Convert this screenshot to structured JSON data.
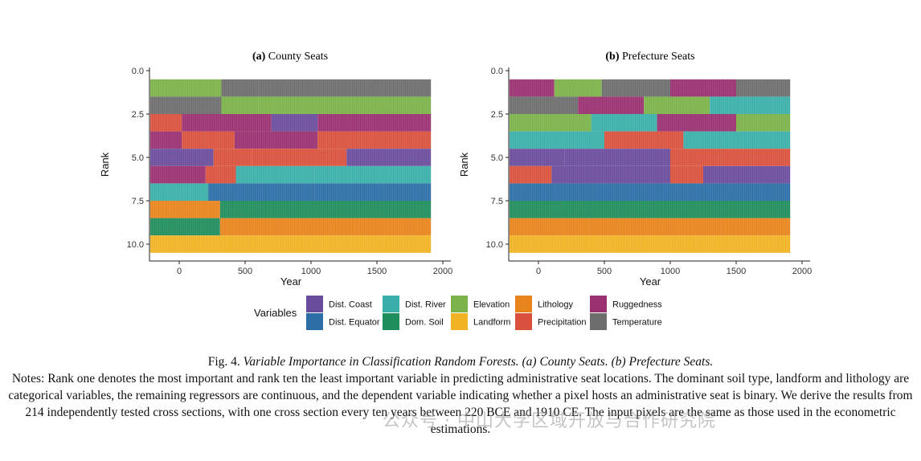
{
  "colors": {
    "Dist. Coast": "#6a4c9c",
    "Dist. Equator": "#2b6ea6",
    "Elevation": "#7bb249",
    "Lithology": "#e8841c",
    "Ruggedness": "#9a3070",
    "Dist. River": "#3aafa9",
    "Dom. Soil": "#1f8d5c",
    "Landform": "#f1b323",
    "Precipitation": "#d9513c",
    "Temperature": "#6d6d6d"
  },
  "legend": {
    "title": "Variables",
    "items": [
      "Dist. Coast",
      "Dist. Equator",
      "Dist. River",
      "Dom. Soil",
      "Elevation",
      "Landform",
      "Lithology",
      "Precipitation",
      "Ruggedness",
      "Temperature"
    ]
  },
  "chart_data": [
    {
      "type": "heatmap",
      "title_bold": "(a)",
      "title": "County Seats",
      "xlabel": "Year",
      "ylabel": "Rank",
      "xlim": [
        -220,
        1910
      ],
      "xticks": [
        0,
        500,
        1000,
        1500,
        2000
      ],
      "ylim": [
        0.5,
        10.5
      ],
      "yticks": [
        0.0,
        2.5,
        5.0,
        7.5,
        10.0
      ],
      "rows": [
        {
          "rank": 1,
          "segments": [
            {
              "from": -220,
              "to": 320,
              "variable": "Elevation"
            },
            {
              "from": 320,
              "to": 600,
              "variable": "Temperature"
            },
            {
              "from": 600,
              "to": 1910,
              "variable": "Temperature"
            }
          ]
        },
        {
          "rank": 2,
          "segments": [
            {
              "from": -220,
              "to": 320,
              "variable": "Temperature"
            },
            {
              "from": 320,
              "to": 600,
              "variable": "Elevation"
            },
            {
              "from": 600,
              "to": 1910,
              "variable": "Elevation"
            }
          ]
        },
        {
          "rank": 3,
          "segments": [
            {
              "from": -220,
              "to": 20,
              "variable": "Precipitation"
            },
            {
              "from": 20,
              "to": 700,
              "variable": "Ruggedness"
            },
            {
              "from": 700,
              "to": 1050,
              "variable": "Dist. Coast"
            },
            {
              "from": 1050,
              "to": 1910,
              "variable": "Ruggedness"
            }
          ]
        },
        {
          "rank": 4,
          "segments": [
            {
              "from": -220,
              "to": 20,
              "variable": "Ruggedness"
            },
            {
              "from": 20,
              "to": 420,
              "variable": "Precipitation"
            },
            {
              "from": 420,
              "to": 1050,
              "variable": "Ruggedness"
            },
            {
              "from": 1050,
              "to": 1910,
              "variable": "Precipitation"
            }
          ]
        },
        {
          "rank": 5,
          "segments": [
            {
              "from": -220,
              "to": 260,
              "variable": "Dist. Coast"
            },
            {
              "from": 260,
              "to": 550,
              "variable": "Precipitation"
            },
            {
              "from": 550,
              "to": 1270,
              "variable": "Precipitation"
            },
            {
              "from": 1270,
              "to": 1910,
              "variable": "Dist. Coast"
            }
          ]
        },
        {
          "rank": 6,
          "segments": [
            {
              "from": -220,
              "to": 200,
              "variable": "Ruggedness"
            },
            {
              "from": 200,
              "to": 430,
              "variable": "Precipitation"
            },
            {
              "from": 430,
              "to": 1030,
              "variable": "Dist. River"
            },
            {
              "from": 1030,
              "to": 1910,
              "variable": "Dist. River"
            }
          ]
        },
        {
          "rank": 7,
          "segments": [
            {
              "from": -220,
              "to": 220,
              "variable": "Dist. River"
            },
            {
              "from": 220,
              "to": 1030,
              "variable": "Dist. Equator"
            },
            {
              "from": 1030,
              "to": 1910,
              "variable": "Dist. Equator"
            }
          ]
        },
        {
          "rank": 8,
          "segments": [
            {
              "from": -220,
              "to": 310,
              "variable": "Lithology"
            },
            {
              "from": 310,
              "to": 1910,
              "variable": "Dom. Soil"
            }
          ]
        },
        {
          "rank": 9,
          "segments": [
            {
              "from": -220,
              "to": 310,
              "variable": "Dom. Soil"
            },
            {
              "from": 310,
              "to": 1910,
              "variable": "Lithology"
            }
          ]
        },
        {
          "rank": 10,
          "segments": [
            {
              "from": -220,
              "to": 1910,
              "variable": "Landform"
            }
          ]
        }
      ]
    },
    {
      "type": "heatmap",
      "title_bold": "(b)",
      "title": "Prefecture Seats",
      "xlabel": "Year",
      "ylabel": "Rank",
      "xlim": [
        -220,
        1910
      ],
      "xticks": [
        0,
        500,
        1000,
        1500,
        2000
      ],
      "ylim": [
        0.5,
        10.5
      ],
      "yticks": [
        0.0,
        2.5,
        5.0,
        7.5,
        10.0
      ],
      "rows": [
        {
          "rank": 1,
          "segments": [
            {
              "from": -220,
              "to": 120,
              "variable": "Ruggedness"
            },
            {
              "from": 120,
              "to": 480,
              "variable": "Elevation"
            },
            {
              "from": 480,
              "to": 1000,
              "variable": "Temperature"
            },
            {
              "from": 1000,
              "to": 1500,
              "variable": "Ruggedness"
            },
            {
              "from": 1500,
              "to": 1910,
              "variable": "Temperature"
            }
          ]
        },
        {
          "rank": 2,
          "segments": [
            {
              "from": -220,
              "to": 300,
              "variable": "Temperature"
            },
            {
              "from": 300,
              "to": 800,
              "variable": "Ruggedness"
            },
            {
              "from": 800,
              "to": 1300,
              "variable": "Elevation"
            },
            {
              "from": 1300,
              "to": 1910,
              "variable": "Dist. River"
            }
          ]
        },
        {
          "rank": 3,
          "segments": [
            {
              "from": -220,
              "to": 400,
              "variable": "Elevation"
            },
            {
              "from": 400,
              "to": 900,
              "variable": "Dist. River"
            },
            {
              "from": 900,
              "to": 1500,
              "variable": "Ruggedness"
            },
            {
              "from": 1500,
              "to": 1910,
              "variable": "Elevation"
            }
          ]
        },
        {
          "rank": 4,
          "segments": [
            {
              "from": -220,
              "to": 500,
              "variable": "Dist. River"
            },
            {
              "from": 500,
              "to": 1100,
              "variable": "Precipitation"
            },
            {
              "from": 1100,
              "to": 1910,
              "variable": "Dist. River"
            }
          ]
        },
        {
          "rank": 5,
          "segments": [
            {
              "from": -220,
              "to": 200,
              "variable": "Dist. Coast"
            },
            {
              "from": 200,
              "to": 1000,
              "variable": "Dist. Coast"
            },
            {
              "from": 1000,
              "to": 1910,
              "variable": "Precipitation"
            }
          ]
        },
        {
          "rank": 6,
          "segments": [
            {
              "from": -220,
              "to": 100,
              "variable": "Precipitation"
            },
            {
              "from": 100,
              "to": 1000,
              "variable": "Dist. Coast"
            },
            {
              "from": 1000,
              "to": 1250,
              "variable": "Precipitation"
            },
            {
              "from": 1250,
              "to": 1910,
              "variable": "Dist. Coast"
            }
          ]
        },
        {
          "rank": 7,
          "segments": [
            {
              "from": -220,
              "to": 1910,
              "variable": "Dist. Equator"
            }
          ]
        },
        {
          "rank": 8,
          "segments": [
            {
              "from": -220,
              "to": 1910,
              "variable": "Dom. Soil"
            }
          ]
        },
        {
          "rank": 9,
          "segments": [
            {
              "from": -220,
              "to": 1910,
              "variable": "Lithology"
            }
          ]
        },
        {
          "rank": 10,
          "segments": [
            {
              "from": -220,
              "to": 1910,
              "variable": "Landform"
            }
          ]
        }
      ]
    }
  ],
  "caption": {
    "prefix": "Fig. 4. ",
    "title": "Variable Importance in Classification Random Forests. (a) County Seats. (b) Prefecture Seats."
  },
  "notes": {
    "label": "Notes:",
    "text": " Rank one denotes the most important and rank ten the least important variable in predicting administrative seat locations. The dominant soil type, landform and lithology are categorical variables, the remaining regressors are continuous, and the dependent variable indicating whether a pixel hosts an administrative seat is binary. We derive the results from 214 independently tested cross sections, with one cross section every ten years between 220 BCE and 1910 CE. The input pixels are the same as those used in the econometric estimations."
  },
  "watermark": "公众号 · 中山大学区域开放与合作研究院"
}
